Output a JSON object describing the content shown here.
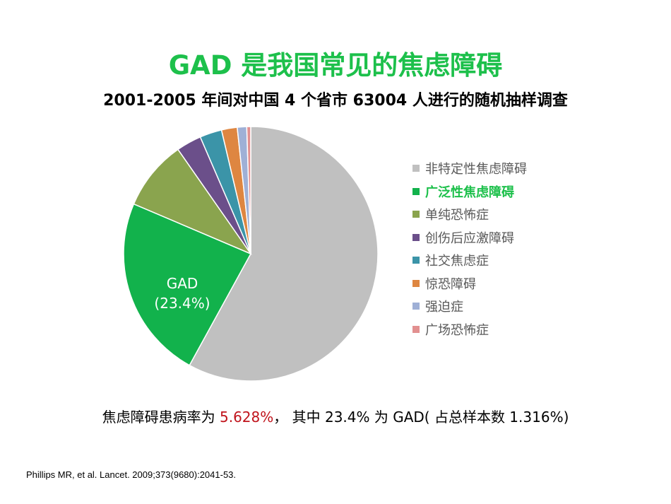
{
  "title": "GAD 是我国常见的焦虑障碍",
  "subtitle": "2001-2005 年间对中国 4 个省市 63004 人进行的随机抽样调查",
  "chart_data": {
    "type": "pie",
    "title": "",
    "legend_position": "right",
    "slices": [
      {
        "label": "非特定性焦虑障碍",
        "value": 58.0,
        "color": "#c0c0c0"
      },
      {
        "label": "广泛性焦虑障碍",
        "value": 23.4,
        "color": "#12b24c",
        "highlight": true
      },
      {
        "label": "单纯恐怖症",
        "value": 8.9,
        "color": "#8aa44e"
      },
      {
        "label": "创伤后应激障碍",
        "value": 3.2,
        "color": "#6b4f8a"
      },
      {
        "label": "社交焦虑症",
        "value": 2.8,
        "color": "#3b94a8"
      },
      {
        "label": "惊恐障碍",
        "value": 2.0,
        "color": "#de8641"
      },
      {
        "label": "强迫症",
        "value": 1.2,
        "color": "#9fb0d6"
      },
      {
        "label": "广场恐怖症",
        "value": 0.5,
        "color": "#e29090"
      }
    ],
    "annotations": {
      "gad_line1": "GAD",
      "gad_line2": "(23.4%)"
    }
  },
  "summary": {
    "prefix": "焦虑障碍患病率为 ",
    "rate": "5.628%",
    "suffix": "， 其中 23.4% 为 GAD( 占总样本数 1.316%)"
  },
  "citation": "Phillips MR, et al. Lancet. 2009;373(9680):2041-53."
}
